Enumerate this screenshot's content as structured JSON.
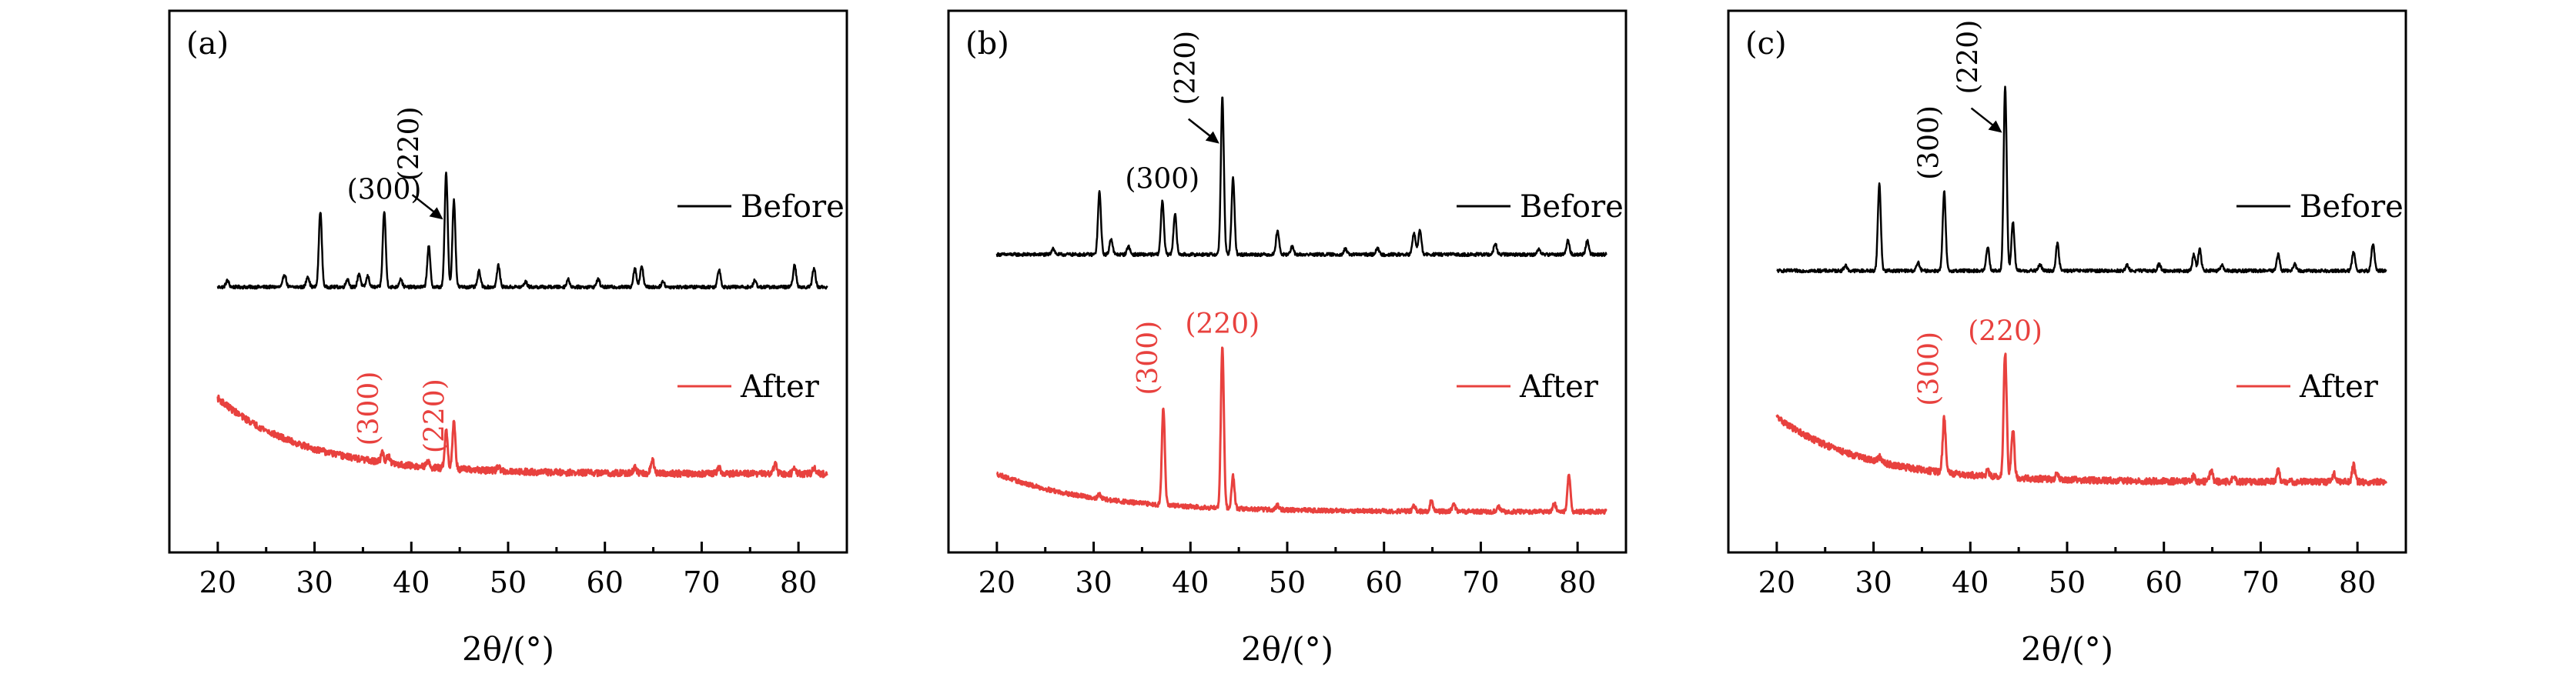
{
  "chart_data": [
    {
      "type": "line",
      "panel_label": "(a)",
      "xlabel": "2θ/(°)",
      "xlim": [
        15,
        85
      ],
      "xticks": [
        20,
        30,
        40,
        50,
        60,
        70,
        80
      ],
      "grid": false,
      "legend_placement": "right",
      "series": [
        {
          "name": "Before",
          "color": "#000000",
          "baseline": 0.49,
          "noise": 0.003,
          "background": {
            "amp": 0,
            "decay": 10
          },
          "peaks": [
            [
              21.0,
              0.012
            ],
            [
              26.9,
              0.024
            ],
            [
              29.3,
              0.02
            ],
            [
              30.6,
              0.14
            ],
            [
              33.4,
              0.015
            ],
            [
              34.6,
              0.025
            ],
            [
              35.5,
              0.02
            ],
            [
              37.2,
              0.14
            ],
            [
              38.9,
              0.015
            ],
            [
              41.8,
              0.075
            ],
            [
              43.6,
              0.21
            ],
            [
              44.4,
              0.16
            ],
            [
              47.0,
              0.029
            ],
            [
              49.0,
              0.04
            ],
            [
              51.8,
              0.01
            ],
            [
              56.2,
              0.014
            ],
            [
              59.3,
              0.015
            ],
            [
              63.1,
              0.035
            ],
            [
              63.8,
              0.04
            ],
            [
              66.0,
              0.01
            ],
            [
              71.8,
              0.033
            ],
            [
              75.5,
              0.012
            ],
            [
              79.6,
              0.04
            ],
            [
              81.6,
              0.035
            ]
          ],
          "annotations": [
            {
              "label": "(300)",
              "x": 37.2,
              "rotated": false
            },
            {
              "label": "(220)",
              "x": 43.6,
              "rotated": true,
              "arrow": true
            }
          ]
        },
        {
          "name": "After",
          "color": "#e8413e",
          "baseline": 0.145,
          "noise": 0.006,
          "background": {
            "amp": 0.14,
            "decay": 9
          },
          "peaks": [
            [
              37.0,
              0.018
            ],
            [
              37.6,
              0.014
            ],
            [
              41.7,
              0.01
            ],
            [
              43.6,
              0.07
            ],
            [
              44.4,
              0.085
            ],
            [
              49.0,
              0.008
            ],
            [
              63.1,
              0.01
            ],
            [
              64.9,
              0.025
            ],
            [
              71.8,
              0.01
            ],
            [
              77.6,
              0.018
            ],
            [
              79.6,
              0.012
            ],
            [
              81.6,
              0.01
            ]
          ],
          "annotations": [
            {
              "label": "(300)",
              "x": 37.2,
              "rotated": true
            },
            {
              "label": "(220)",
              "x": 44.0,
              "rotated": true
            }
          ]
        }
      ]
    },
    {
      "type": "line",
      "panel_label": "(b)",
      "xlabel": "2θ/(°)",
      "xlim": [
        15,
        85
      ],
      "xticks": [
        20,
        30,
        40,
        50,
        60,
        70,
        80
      ],
      "grid": false,
      "legend_placement": "right",
      "series": [
        {
          "name": "Before",
          "color": "#000000",
          "baseline": 0.55,
          "noise": 0.003,
          "background": {
            "amp": 0,
            "decay": 10
          },
          "peaks": [
            [
              25.8,
              0.012
            ],
            [
              30.6,
              0.115
            ],
            [
              31.8,
              0.03
            ],
            [
              33.6,
              0.015
            ],
            [
              37.1,
              0.1
            ],
            [
              38.4,
              0.075
            ],
            [
              43.3,
              0.29
            ],
            [
              44.4,
              0.14
            ],
            [
              49.0,
              0.045
            ],
            [
              50.5,
              0.014
            ],
            [
              56.0,
              0.01
            ],
            [
              59.3,
              0.012
            ],
            [
              63.1,
              0.04
            ],
            [
              63.7,
              0.045
            ],
            [
              71.5,
              0.02
            ],
            [
              76.0,
              0.01
            ],
            [
              79.0,
              0.026
            ],
            [
              81.0,
              0.025
            ]
          ],
          "annotations": [
            {
              "label": "(300)",
              "x": 37.1,
              "rotated": false
            },
            {
              "label": "(220)",
              "x": 43.3,
              "rotated": true,
              "arrow": true
            }
          ]
        },
        {
          "name": "After",
          "color": "#e8413e",
          "baseline": 0.075,
          "noise": 0.004,
          "background": {
            "amp": 0.07,
            "decay": 10
          },
          "peaks": [
            [
              30.6,
              0.008
            ],
            [
              37.2,
              0.18
            ],
            [
              43.3,
              0.3
            ],
            [
              44.4,
              0.06
            ],
            [
              49.0,
              0.008
            ],
            [
              63.1,
              0.01
            ],
            [
              64.9,
              0.02
            ],
            [
              67.2,
              0.015
            ],
            [
              71.8,
              0.01
            ],
            [
              77.6,
              0.015
            ],
            [
              79.1,
              0.07
            ]
          ],
          "annotations": [
            {
              "label": "(300)",
              "x": 37.2,
              "rotated": true
            },
            {
              "label": "(220)",
              "x": 43.3,
              "rotated": false
            }
          ]
        }
      ]
    },
    {
      "type": "line",
      "panel_label": "(c)",
      "xlabel": "2θ/(°)",
      "xlim": [
        15,
        85
      ],
      "xticks": [
        20,
        30,
        40,
        50,
        60,
        70,
        80
      ],
      "grid": false,
      "legend_placement": "right",
      "series": [
        {
          "name": "Before",
          "color": "#000000",
          "baseline": 0.52,
          "noise": 0.003,
          "background": {
            "amp": 0,
            "decay": 10
          },
          "peaks": [
            [
              27.1,
              0.01
            ],
            [
              30.6,
              0.16
            ],
            [
              34.6,
              0.015
            ],
            [
              37.3,
              0.145
            ],
            [
              41.8,
              0.045
            ],
            [
              43.6,
              0.34
            ],
            [
              44.4,
              0.09
            ],
            [
              47.2,
              0.012
            ],
            [
              49.0,
              0.05
            ],
            [
              56.2,
              0.01
            ],
            [
              59.5,
              0.012
            ],
            [
              63.1,
              0.03
            ],
            [
              63.7,
              0.04
            ],
            [
              66.0,
              0.01
            ],
            [
              71.8,
              0.03
            ],
            [
              73.5,
              0.012
            ],
            [
              79.6,
              0.035
            ],
            [
              81.6,
              0.05
            ]
          ],
          "annotations": [
            {
              "label": "(300)",
              "x": 37.3,
              "rotated": true
            },
            {
              "label": "(220)",
              "x": 43.6,
              "rotated": true,
              "arrow": true
            }
          ]
        },
        {
          "name": "After",
          "color": "#e8413e",
          "baseline": 0.13,
          "noise": 0.006,
          "background": {
            "amp": 0.12,
            "decay": 9
          },
          "peaks": [
            [
              30.6,
              0.01
            ],
            [
              37.3,
              0.1
            ],
            [
              41.8,
              0.01
            ],
            [
              43.6,
              0.23
            ],
            [
              44.4,
              0.09
            ],
            [
              49.0,
              0.012
            ],
            [
              63.1,
              0.01
            ],
            [
              64.9,
              0.02
            ],
            [
              67.2,
              0.01
            ],
            [
              71.8,
              0.02
            ],
            [
              77.6,
              0.015
            ],
            [
              79.6,
              0.03
            ]
          ],
          "annotations": [
            {
              "label": "(300)",
              "x": 37.3,
              "rotated": true
            },
            {
              "label": "(220)",
              "x": 43.6,
              "rotated": false
            }
          ]
        }
      ]
    }
  ]
}
